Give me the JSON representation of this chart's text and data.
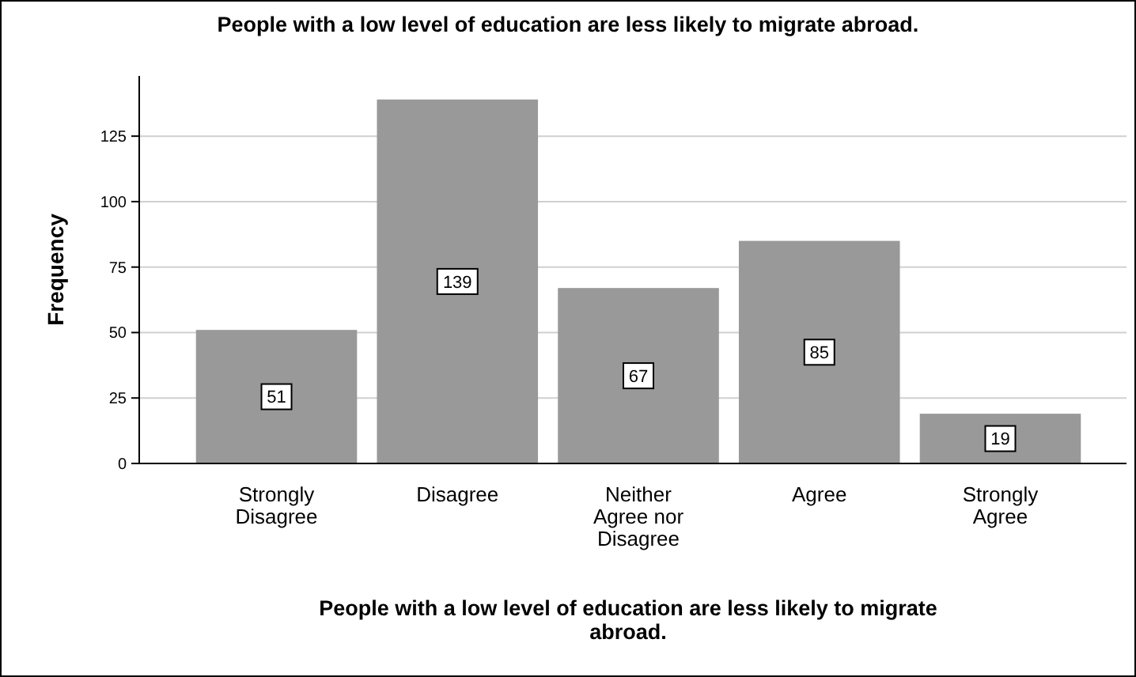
{
  "chart_data": {
    "type": "bar",
    "title": "People with a low level of education are less likely to migrate abroad.",
    "xlabel": "People with a low level of education are less likely to migrate abroad.",
    "ylabel": "Frequency",
    "categories": [
      "Strongly Disagree",
      "Disagree",
      "Neither Agree nor Disagree",
      "Agree",
      "Strongly Agree"
    ],
    "values": [
      51,
      139,
      67,
      85,
      19
    ],
    "color": "#999999",
    "ylim": [
      0,
      148
    ],
    "yticks": [
      0,
      25,
      50,
      75,
      100,
      125
    ],
    "grid": "y",
    "data_labels": true
  }
}
